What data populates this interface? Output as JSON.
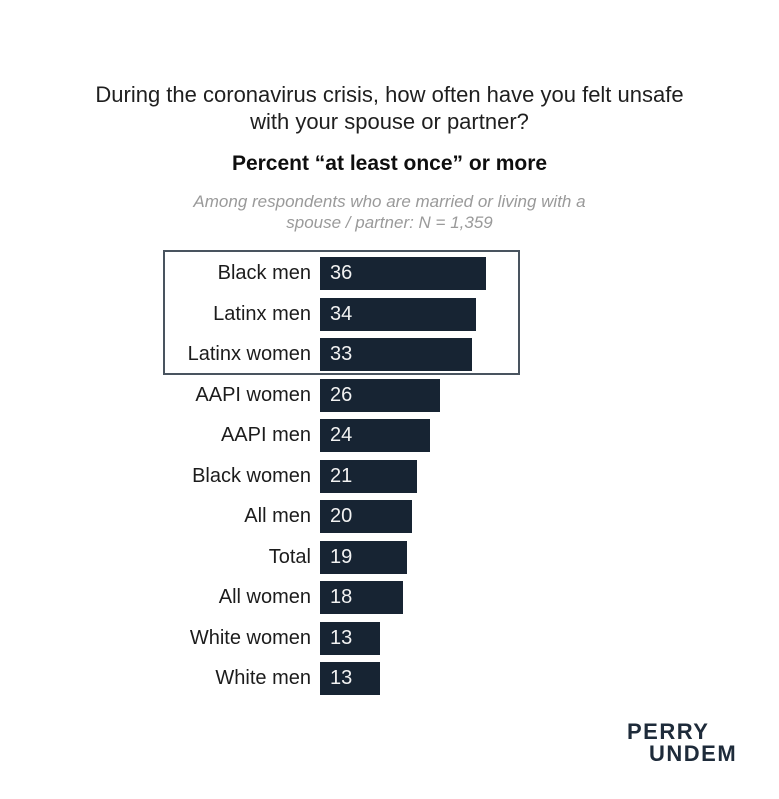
{
  "header": {
    "title_lines": [
      "During the coronavirus crisis, how often have you felt unsafe",
      "with your spouse or partner?"
    ],
    "subtitle": "Percent “at least once” or more",
    "note_lines": [
      "Among respondents who are married or living with a",
      "spouse / partner: N = 1,359"
    ]
  },
  "chart_data": {
    "type": "bar",
    "orientation": "horizontal",
    "title": "During the coronavirus crisis, how often have you felt unsafe with your spouse or partner?",
    "subtitle": "Percent “at least once” or more",
    "annotation": "Among respondents who are married or living with a spouse / partner: N = 1,359",
    "categories": [
      "Black men",
      "Latinx men",
      "Latinx women",
      "AAPI women",
      "AAPI men",
      "Black women",
      "All men",
      "Total",
      "All women",
      "White women",
      "White men"
    ],
    "values": [
      36,
      34,
      33,
      26,
      24,
      21,
      20,
      19,
      18,
      13,
      13
    ],
    "value_labels_shown_inside_bars": true,
    "highlighted_categories": [
      "Black men",
      "Latinx men",
      "Latinx women"
    ],
    "xlim": [
      0,
      40
    ],
    "grid": false,
    "axis_ticks_shown": false,
    "legend": "none",
    "bar_color": "#172433",
    "value_label_color": "#f2f2f2",
    "highlight_box_border_color": "#49545f"
  },
  "logo": {
    "line1": "PERRY",
    "line2": "UNDEM",
    "color": "#1e2b3a"
  }
}
